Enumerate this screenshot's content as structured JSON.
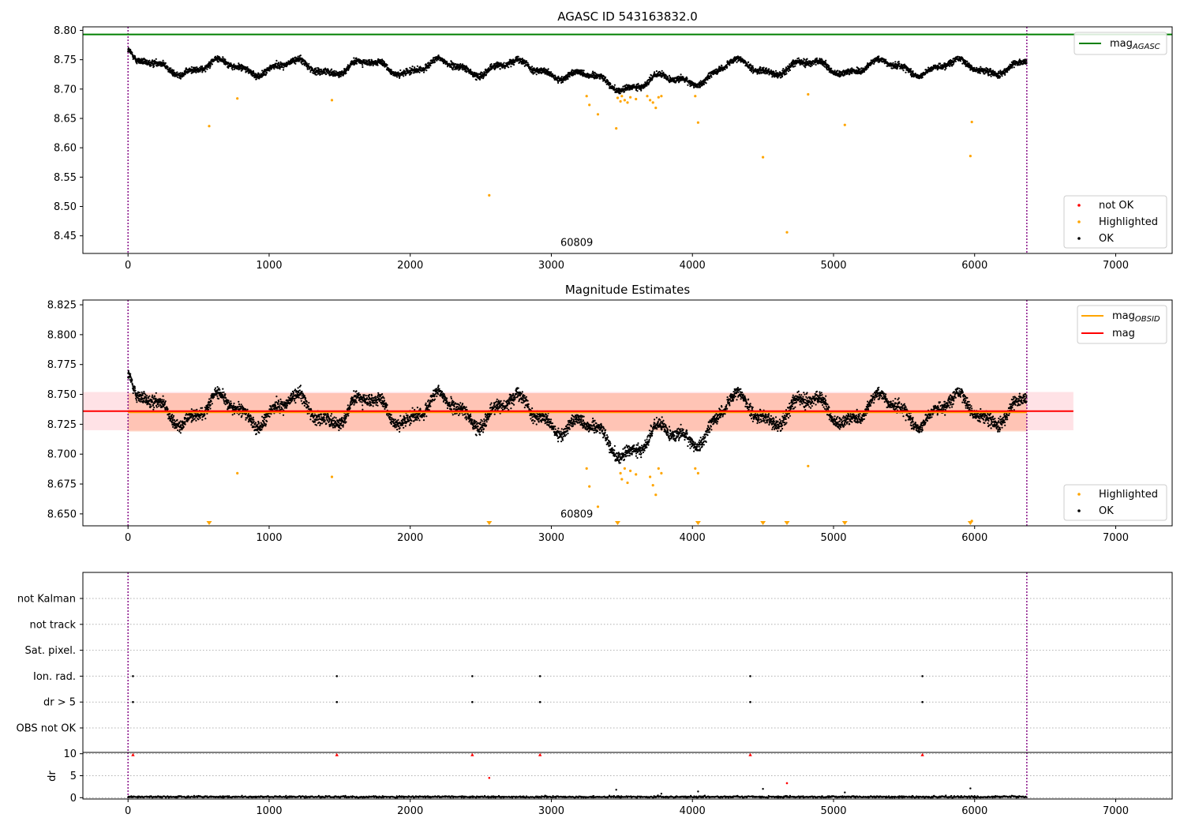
{
  "chart_data": [
    {
      "type": "scatter",
      "title": "AGASC ID 543163832.0",
      "xlim": [
        -320,
        7400
      ],
      "ylim": [
        8.42,
        8.806
      ],
      "xticks": [
        0,
        1000,
        2000,
        3000,
        4000,
        5000,
        6000,
        7000
      ],
      "yticks": [
        8.45,
        8.5,
        8.55,
        8.6,
        8.65,
        8.7,
        8.75,
        8.8
      ],
      "obsid_boundaries": [
        0,
        6370
      ],
      "obsid_label": {
        "text": "60809",
        "x": 3180,
        "y": 8.433
      },
      "mag_agasc": 8.793,
      "legend_upper": [
        {
          "name": "mag",
          "sub": "AGASC",
          "color": "#008000",
          "kind": "line"
        }
      ],
      "legend_lower": [
        {
          "name": "not OK",
          "color": "#ff0000",
          "kind": "point"
        },
        {
          "name": "Highlighted",
          "color": "#ffa500",
          "kind": "point"
        },
        {
          "name": "OK",
          "color": "#000000",
          "kind": "point"
        }
      ],
      "highlighted_points": [
        [
          575,
          8.637
        ],
        [
          775,
          8.684
        ],
        [
          1445,
          8.681
        ],
        [
          2560,
          8.519
        ],
        [
          3250,
          8.688
        ],
        [
          3270,
          8.673
        ],
        [
          3330,
          8.657
        ],
        [
          3460,
          8.633
        ],
        [
          3470,
          8.685
        ],
        [
          3490,
          8.679
        ],
        [
          3500,
          8.688
        ],
        [
          3520,
          8.681
        ],
        [
          3540,
          8.677
        ],
        [
          3560,
          8.686
        ],
        [
          3600,
          8.683
        ],
        [
          3680,
          8.688
        ],
        [
          3700,
          8.681
        ],
        [
          3720,
          8.677
        ],
        [
          3740,
          8.668
        ],
        [
          3760,
          8.686
        ],
        [
          3780,
          8.688
        ],
        [
          4020,
          8.688
        ],
        [
          4040,
          8.643
        ],
        [
          4500,
          8.584
        ],
        [
          4670,
          8.456
        ],
        [
          4820,
          8.691
        ],
        [
          5080,
          8.639
        ],
        [
          5970,
          8.586
        ],
        [
          5980,
          8.644
        ]
      ]
    },
    {
      "type": "scatter",
      "title": "Magnitude Estimates",
      "xlim": [
        -320,
        7400
      ],
      "ylim": [
        8.64,
        8.829
      ],
      "xticks": [
        0,
        1000,
        2000,
        3000,
        4000,
        5000,
        6000,
        7000
      ],
      "yticks": [
        8.65,
        8.675,
        8.7,
        8.725,
        8.75,
        8.775,
        8.8,
        8.825
      ],
      "obsid_boundaries": [
        0,
        6370
      ],
      "obsid_label": {
        "text": "60809",
        "x": 3180,
        "y": 8.647
      },
      "mag": 8.736,
      "mag_band": [
        8.72,
        8.752
      ],
      "mag_obsid": 8.735,
      "mag_obsid_band": [
        8.719,
        8.751
      ],
      "legend_upper": [
        {
          "name": "mag",
          "sub": "OBSID",
          "color": "#ffa500",
          "kind": "line"
        },
        {
          "name": "mag",
          "sub": "",
          "color": "#ff0000",
          "kind": "line"
        }
      ],
      "legend_lower": [
        {
          "name": "Highlighted",
          "color": "#ffa500",
          "kind": "point"
        },
        {
          "name": "OK",
          "color": "#000000",
          "kind": "point"
        }
      ],
      "highlighted_points": [
        [
          775,
          8.684
        ],
        [
          1445,
          8.681
        ],
        [
          3250,
          8.688
        ],
        [
          3270,
          8.673
        ],
        [
          3330,
          8.656
        ],
        [
          3490,
          8.684
        ],
        [
          3500,
          8.679
        ],
        [
          3520,
          8.688
        ],
        [
          3540,
          8.676
        ],
        [
          3560,
          8.686
        ],
        [
          3600,
          8.683
        ],
        [
          3700,
          8.681
        ],
        [
          3720,
          8.674
        ],
        [
          3740,
          8.666
        ],
        [
          3760,
          8.688
        ],
        [
          3780,
          8.684
        ],
        [
          4020,
          8.688
        ],
        [
          4040,
          8.684
        ],
        [
          4820,
          8.69
        ],
        [
          5980,
          8.644
        ]
      ],
      "off_scale_markers": [
        575,
        2560,
        3470,
        4040,
        4500,
        4670,
        5080,
        5970
      ]
    },
    {
      "type": "scatter",
      "title": "",
      "xlim": [
        -320,
        7400
      ],
      "xticks": [
        0,
        1000,
        2000,
        3000,
        4000,
        5000,
        6000,
        7000
      ],
      "obsid_boundaries": [
        0,
        6370
      ],
      "flag_rows": [
        "not Kalman",
        "not track",
        "Sat. pixel.",
        "Ion. rad.",
        "dr > 5",
        "OBS not OK"
      ],
      "flag_points": {
        "Ion. rad.": [
          35,
          1480,
          2440,
          2920,
          4410,
          5630
        ],
        "dr > 5": [
          35,
          1480,
          2440,
          2920,
          4410,
          5630
        ]
      },
      "ylabel": "dr",
      "dr_ylim": [
        -0.3,
        10.3
      ],
      "dr_yticks": [
        0,
        5,
        10
      ],
      "dr_red_points": [
        [
          35,
          9.8
        ],
        [
          1480,
          9.8
        ],
        [
          2440,
          9.8
        ],
        [
          2920,
          9.8
        ],
        [
          4410,
          9.8
        ],
        [
          5630,
          9.8
        ],
        [
          2560,
          4.5
        ],
        [
          4670,
          3.3
        ]
      ],
      "dr_black_points": [
        [
          3460,
          1.8
        ],
        [
          4040,
          1.4
        ],
        [
          4500,
          2.0
        ],
        [
          5080,
          1.2
        ],
        [
          5970,
          2.1
        ],
        [
          3780,
          0.9
        ]
      ]
    }
  ]
}
